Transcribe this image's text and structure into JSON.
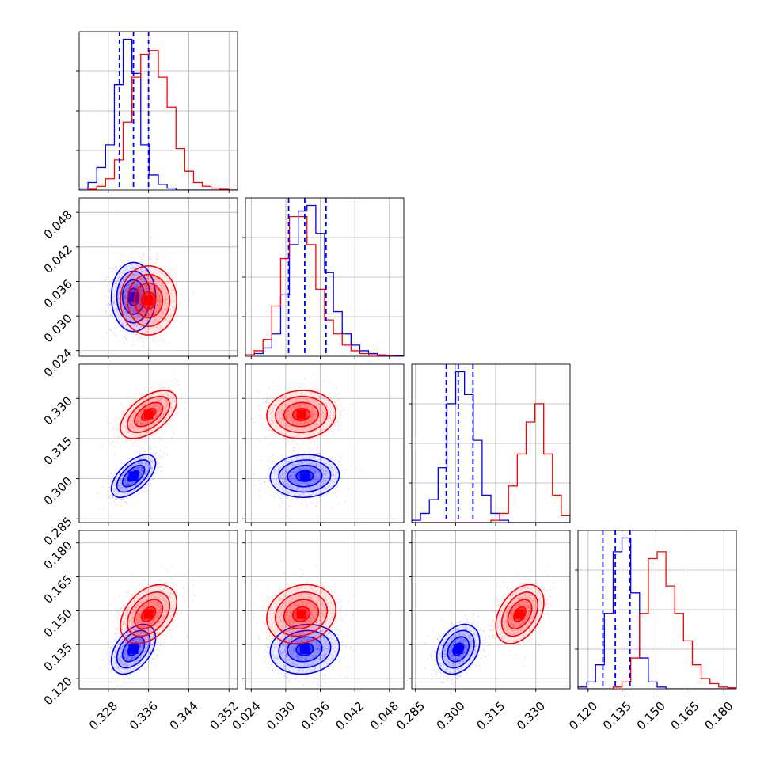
{
  "chart_data": {
    "type": "corner",
    "parameters": [
      {
        "ticks": [
          "0.328",
          "0.336",
          "0.344",
          "0.352"
        ],
        "tick_values": [
          0.328,
          0.336,
          0.344,
          0.352
        ],
        "range": [
          0.3222,
          0.3537
        ]
      },
      {
        "ticks": [
          "0.024",
          "0.030",
          "0.036",
          "0.042",
          "0.048"
        ],
        "tick_values": [
          0.024,
          0.03,
          0.036,
          0.042,
          0.048
        ],
        "range": [
          0.023,
          0.0505
        ]
      },
      {
        "ticks": [
          "0.285",
          "0.300",
          "0.315",
          "0.330"
        ],
        "tick_values": [
          0.285,
          0.3,
          0.315,
          0.33
        ],
        "range": [
          0.2836,
          0.3428
        ]
      },
      {
        "ticks": [
          "0.120",
          "0.135",
          "0.150",
          "0.165",
          "0.180"
        ],
        "tick_values": [
          0.12,
          0.135,
          0.15,
          0.165,
          0.18
        ],
        "range": [
          0.1155,
          0.1855
        ]
      }
    ],
    "series": [
      {
        "color": "#0000ff",
        "means": [
          0.333,
          0.0333,
          0.301,
          0.133
        ],
        "sigmas": [
          0.0022,
          0.003,
          0.004,
          0.0055
        ],
        "correlations": {
          "1_0": 0.0,
          "2_0": 0.6,
          "2_1": 0.05,
          "3_0": 0.45,
          "3_1": 0.1,
          "3_2": 0.3
        },
        "quantiles": [
          [
            0.3302,
            0.333,
            0.336
          ],
          [
            0.0305,
            0.0333,
            0.037
          ],
          [
            0.2965,
            0.301,
            0.3065
          ],
          [
            0.1265,
            0.132,
            0.1385
          ]
        ],
        "histograms": [
          [
            0.5,
            2,
            6,
            12,
            28,
            40,
            31,
            12,
            4,
            1.5,
            0.5,
            0,
            0,
            0,
            0,
            0,
            0,
            0
          ],
          [
            0.5,
            1,
            3,
            8,
            22,
            40,
            52,
            54,
            44,
            30,
            16,
            8,
            4,
            2,
            1,
            0.5,
            0.3,
            0.2
          ],
          [
            0.5,
            2,
            5,
            12,
            26,
            33,
            28,
            18,
            6,
            2,
            0.5,
            0,
            0,
            0,
            0,
            0,
            0,
            0
          ],
          [
            0.5,
            2,
            7,
            22,
            40,
            44,
            28,
            9,
            2,
            0.5,
            0,
            0,
            0,
            0,
            0,
            0,
            0,
            0
          ]
        ]
      },
      {
        "color": "#ff0000",
        "means": [
          0.336,
          0.0327,
          0.324,
          0.1485
        ],
        "sigmas": [
          0.0028,
          0.003,
          0.0045,
          0.0065
        ],
        "correlations": {
          "1_0": 0.0,
          "2_0": 0.55,
          "2_1": 0.05,
          "3_0": 0.4,
          "3_1": 0.15,
          "3_2": 0.4
        },
        "quantiles": [],
        "histograms": [
          [
            0,
            0.2,
            1,
            3,
            8,
            18,
            30,
            36,
            37,
            30,
            22,
            11,
            5,
            2,
            1,
            0.5,
            0.2,
            0
          ],
          [
            0.5,
            2,
            6,
            18,
            35,
            50,
            50,
            40,
            24,
            13,
            8,
            4,
            2,
            1,
            0.5,
            0.3,
            0.2,
            0
          ],
          [
            0,
            0,
            0,
            0,
            0,
            0,
            0,
            0,
            0,
            0.5,
            2,
            8,
            15,
            22,
            26,
            15,
            6,
            1.5
          ],
          [
            0,
            0,
            0,
            0,
            0.5,
            2,
            9,
            22,
            38,
            40,
            30,
            22,
            14,
            7,
            3,
            1.5,
            0.5,
            0.3
          ]
        ]
      }
    ],
    "contour_levels": [
      0.5,
      1.0,
      1.5,
      2.0
    ],
    "grid": true
  }
}
